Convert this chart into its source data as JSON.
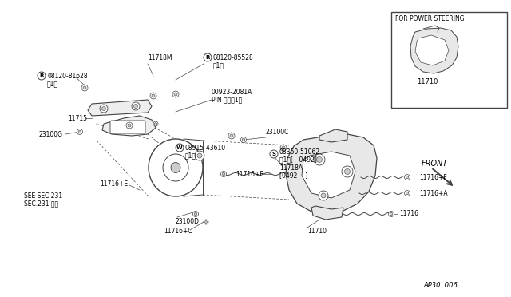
{
  "bg_color": "#ffffff",
  "line_color": "#444444",
  "text_color": "#000000",
  "fig_width": 6.4,
  "fig_height": 3.72,
  "dpi": 100,
  "diagram_ref": "AP30  006",
  "inset_label": "FOR POWER STEERING",
  "inset_part": "11710",
  "front_label": "FRONT"
}
